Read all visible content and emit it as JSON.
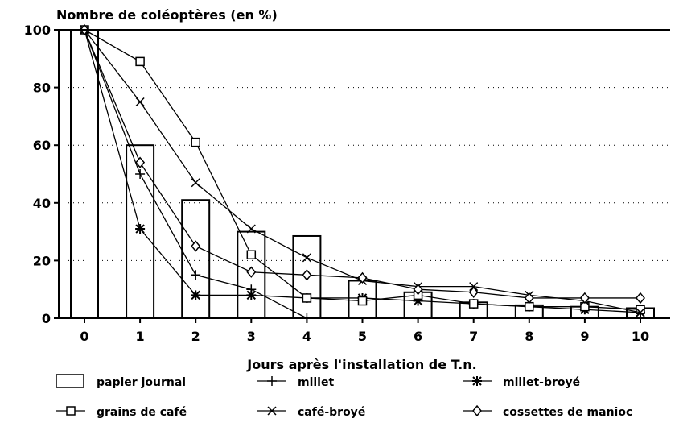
{
  "chart_data": {
    "type": "bar+line",
    "ylabel": "Nombre de coléoptères (en %)",
    "xlabel": "Jours après l'installation de T.n.",
    "ylim": [
      0,
      100
    ],
    "yticks": [
      "0",
      "20",
      "40",
      "60",
      "80",
      "100"
    ],
    "categories": [
      "0",
      "1",
      "2",
      "3",
      "4",
      "5",
      "6",
      "7",
      "8",
      "9",
      "10"
    ],
    "grid": "dotted horizontal",
    "legend_position": "bottom",
    "series": [
      {
        "name": "papier journal",
        "kind": "bar",
        "marker": "bar",
        "values": [
          100,
          60,
          41,
          30,
          28.5,
          13,
          9,
          5.5,
          4.5,
          4,
          3.5
        ]
      },
      {
        "name": "millet",
        "kind": "line",
        "marker": "plus",
        "values": [
          100,
          50,
          15,
          10,
          0,
          null,
          null,
          null,
          null,
          null,
          null
        ]
      },
      {
        "name": "millet-broyé",
        "kind": "line",
        "marker": "star",
        "values": [
          100,
          31,
          8,
          8,
          7,
          7,
          6,
          5,
          4,
          3,
          2
        ]
      },
      {
        "name": "grains de café",
        "kind": "line",
        "marker": "square",
        "values": [
          100,
          89,
          61,
          22,
          7,
          6,
          8,
          5,
          4,
          4,
          3
        ]
      },
      {
        "name": "café-broyé",
        "kind": "line",
        "marker": "cross",
        "values": [
          100,
          75,
          47,
          31,
          21,
          13,
          11,
          11,
          8,
          6,
          2
        ]
      },
      {
        "name": "cossettes de manioc",
        "kind": "line",
        "marker": "diamond",
        "values": [
          100,
          54,
          25,
          16,
          15,
          14,
          10,
          9,
          7,
          7,
          7
        ]
      }
    ]
  }
}
